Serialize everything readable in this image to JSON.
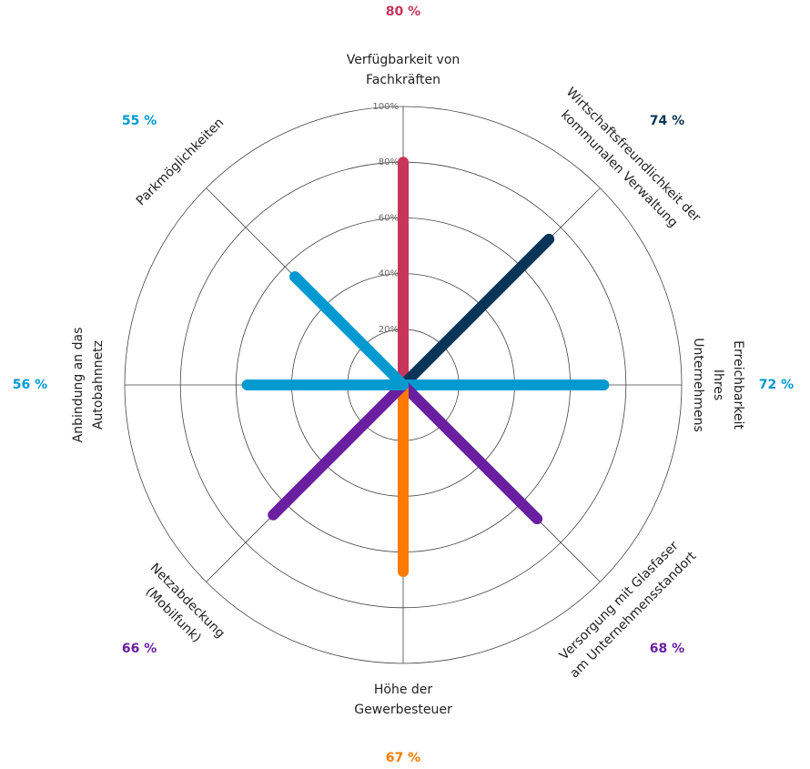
{
  "chart_data": {
    "type": "radial-bar",
    "categories": [
      "Verfügbarkeit von\nFachkräften",
      "Wirtschaftsfreundlichkeit der\nkommunalen Verwaltung",
      "Erreichbarkeit Ihres\nUnternehmens",
      "Versorgung mit Glasfaser\nam Unternehmensstandort",
      "Höhe der\nGewerbesteuer",
      "Netzabdeckung\n(Mobilfunk)",
      "Anbindung an das\nAutobahnnetz",
      "Parkmöglichkeiten"
    ],
    "values": [
      80,
      74,
      72,
      68,
      67,
      66,
      56,
      55
    ],
    "value_labels": [
      "80 %",
      "74 %",
      "72 %",
      "68 %",
      "67 %",
      "66 %",
      "56 %",
      "55 %"
    ],
    "colors": [
      "#c8345a",
      "#0b3558",
      "#0099d0",
      "#6a1fa0",
      "#ff7a00",
      "#6a1fa0",
      "#0099d0",
      "#0099d0"
    ],
    "ylim": [
      0,
      100
    ],
    "yticks": [
      {
        "value": 20,
        "label": "20%"
      },
      {
        "value": 40,
        "label": "40%"
      },
      {
        "value": 60,
        "label": "60%"
      },
      {
        "value": 80,
        "label": "80%"
      },
      {
        "value": 100,
        "label": "100%"
      }
    ],
    "grid": true
  }
}
